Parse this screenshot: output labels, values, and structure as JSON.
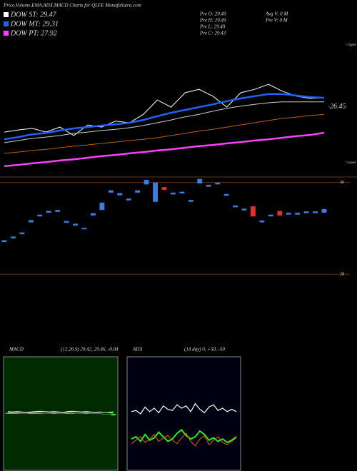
{
  "header": {
    "title": "Price,Volume,EMA,ADX,MACD Charts for QLFE MunafaSutra.com",
    "dow": [
      "DOW ST: 29.47",
      "DOW MT: 29.31",
      "DOW PT: 27.92"
    ],
    "prev": [
      "Pre  O: 29.49",
      "Pre  H: 29.49",
      "Pre  L: 29.49",
      "Pre  C: 29.43"
    ],
    "volume": [
      "Avg V: 0  M",
      "Pre  V: 0  M"
    ]
  },
  "chart_data": [
    {
      "type": "line",
      "upper_label": "<Upper",
      "lower_label": "<Lower",
      "ylim": [
        24.5,
        28.5
      ],
      "yticks": [
        26.45
      ],
      "series": [
        {
          "color": "#ffffff",
          "values": [
            25.64,
            25.71,
            25.76,
            25.64,
            25.8,
            25.53,
            25.87,
            25.8,
            25.99,
            25.94,
            26.21,
            26.67,
            26.44,
            26.9,
            27.01,
            26.79,
            26.44,
            26.9,
            27.01,
            27.17,
            26.95,
            26.79,
            26.72,
            26.74
          ]
        },
        {
          "color": "#2060ff",
          "values": [
            25.41,
            25.48,
            25.57,
            25.61,
            25.69,
            25.76,
            25.8,
            25.85,
            25.89,
            25.94,
            26.03,
            26.15,
            26.26,
            26.35,
            26.44,
            26.53,
            26.63,
            26.72,
            26.79,
            26.86,
            26.86,
            26.81,
            26.76,
            26.74
          ]
        },
        {
          "color": "#cccccc",
          "values": [
            25.3,
            25.37,
            25.44,
            25.48,
            25.53,
            25.6,
            25.64,
            25.69,
            25.73,
            25.78,
            25.85,
            25.94,
            26.03,
            26.13,
            26.21,
            26.31,
            26.4,
            26.47,
            26.53,
            26.58,
            26.61,
            26.61,
            26.61,
            26.61
          ]
        },
        {
          "color": "#b8601a",
          "values": [
            24.96,
            25.0,
            25.05,
            25.09,
            25.14,
            25.19,
            25.23,
            25.28,
            25.32,
            25.37,
            25.41,
            25.46,
            25.53,
            25.6,
            25.67,
            25.73,
            25.8,
            25.87,
            25.94,
            26.01,
            26.08,
            26.12,
            26.17,
            26.21
          ]
        },
        {
          "color": "#ff40ff",
          "values": [
            24.55,
            24.59,
            24.64,
            24.68,
            24.73,
            24.77,
            24.82,
            24.87,
            24.91,
            24.96,
            25.0,
            25.05,
            25.09,
            25.14,
            25.19,
            25.23,
            25.28,
            25.32,
            25.37,
            25.41,
            25.46,
            25.51,
            25.55,
            25.62
          ]
        }
      ]
    },
    {
      "type": "candlestick",
      "ylim": [
        27.83,
        30.09
      ],
      "yticks": [
        30,
        28
      ],
      "up_color": "#3a7fe0",
      "down_color": "#e03030",
      "open": [
        28.7,
        28.78,
        28.87,
        29.13,
        29.26,
        29.34,
        29.36,
        29.12,
        29.06,
        29.0,
        29.28,
        29.4,
        29.78,
        29.72,
        29.61,
        29.78,
        29.96,
        29.58,
        29.9,
        29.74,
        29.76,
        29.58,
        29.98,
        29.91,
        29.96,
        29.71,
        29.46,
        29.39,
        29.48,
        29.13,
        29.26,
        29.38,
        29.3,
        29.3,
        29.33,
        29.33,
        29.34
      ],
      "close": [
        28.74,
        28.82,
        28.91,
        29.18,
        29.3,
        29.38,
        29.4,
        29.16,
        29.1,
        29.01,
        29.33,
        29.56,
        29.83,
        29.77,
        29.65,
        29.83,
        30.06,
        30.0,
        29.84,
        29.78,
        29.8,
        29.62,
        30.08,
        29.95,
        30.0,
        29.75,
        29.5,
        29.43,
        29.26,
        29.17,
        29.3,
        29.28,
        29.34,
        29.34,
        29.37,
        29.37,
        29.42
      ]
    },
    {
      "type": "macd",
      "title": "MACD",
      "subtitle": "(12,26,9) 29.42, 29.46, -0.04",
      "ylim": [
        -1.5,
        1.5
      ],
      "hist_color": "#22dd22",
      "series": [
        {
          "color": "#ffffff",
          "values": [
            0.06,
            0.05,
            0.06,
            0.05,
            0.04,
            0.05,
            0.06,
            0.07,
            0.06,
            0.05,
            0.06,
            0.05,
            0.04,
            0.06,
            0.07,
            0.06,
            0.05,
            0.06,
            0.05,
            0.04,
            0.05,
            0.04,
            0.03,
            0.02
          ]
        },
        {
          "color": "#aaaaaa",
          "values": [
            0.03,
            0.03,
            0.04,
            0.04,
            0.03,
            0.03,
            0.04,
            0.05,
            0.05,
            0.04,
            0.04,
            0.04,
            0.03,
            0.04,
            0.05,
            0.05,
            0.04,
            0.04,
            0.04,
            0.03,
            0.04,
            0.04,
            0.04,
            0.06
          ]
        }
      ],
      "hist": [
        0.03,
        0.02,
        0.02,
        0.01,
        0.01,
        0.02,
        0.02,
        0.02,
        0.01,
        0.01,
        0.02,
        0.01,
        0.01,
        0.02,
        0.02,
        0.01,
        0.01,
        0.02,
        0.01,
        0.01,
        0.01,
        0.0,
        -0.01,
        -0.04
      ]
    },
    {
      "type": "line",
      "title": "ADX",
      "subtitle": "(14 day) 0, +50, -50",
      "ylim": [
        0,
        100
      ],
      "series": [
        {
          "color": "#ffffff",
          "values": [
            52,
            53,
            50,
            56,
            52,
            55,
            51,
            57,
            54,
            53,
            58,
            55,
            57,
            52,
            59,
            54,
            51,
            56,
            58,
            53,
            55,
            52,
            54,
            52
          ]
        },
        {
          "color": "#22ee22",
          "values": [
            28,
            30,
            26,
            32,
            27,
            29,
            34,
            30,
            26,
            28,
            33,
            36,
            31,
            28,
            30,
            35,
            32,
            27,
            29,
            26,
            28,
            25,
            27,
            30
          ]
        },
        {
          "color": "#e06010",
          "values": [
            24,
            27,
            30,
            25,
            28,
            32,
            26,
            29,
            31,
            27,
            24,
            29,
            33,
            26,
            22,
            28,
            31,
            23,
            27,
            30,
            25,
            23,
            26,
            29
          ]
        }
      ]
    }
  ]
}
